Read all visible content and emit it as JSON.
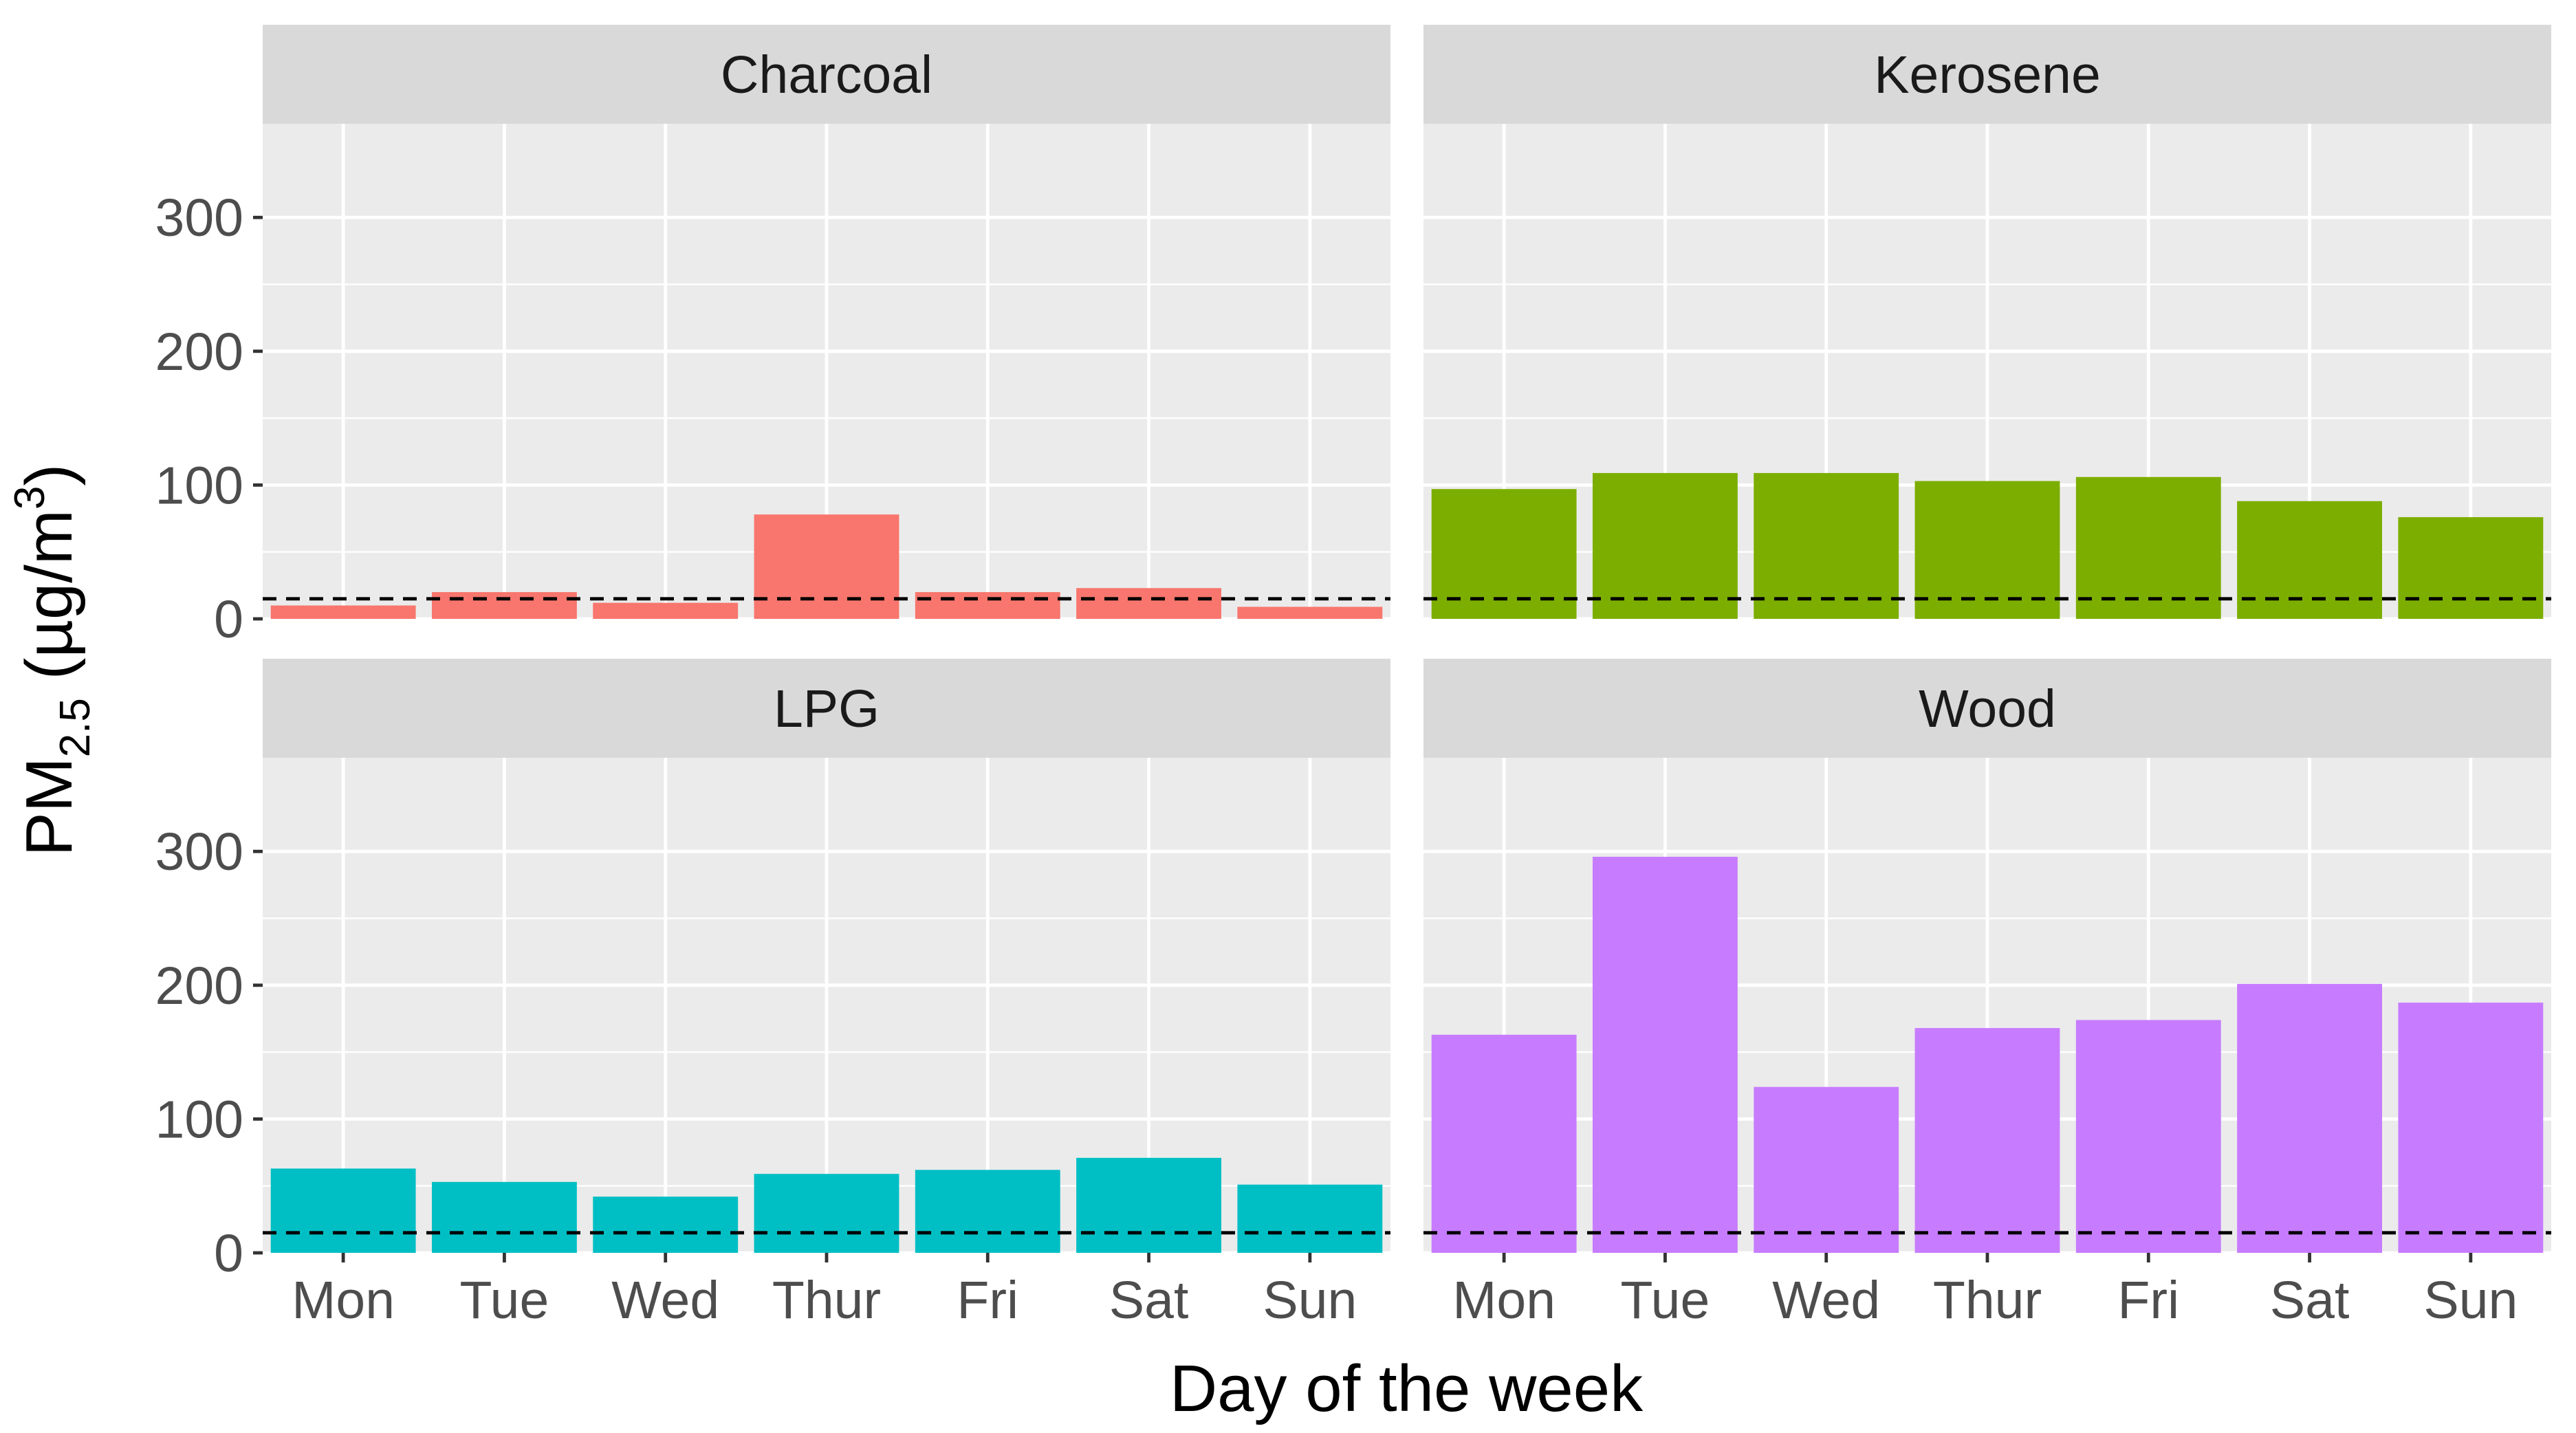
{
  "chart_data": {
    "type": "bar",
    "layout": "facet-2x2",
    "xlabel": "Day of the week",
    "ylabel": "PM2.5 (µg/m3)",
    "ylabel_parts": {
      "base": "PM",
      "sub": "2.5",
      "unit_open": " (µg/m",
      "sup": "3",
      "unit_close": ")"
    },
    "categories": [
      "Mon",
      "Tue",
      "Wed",
      "Thur",
      "Fri",
      "Sat",
      "Sun"
    ],
    "ylim": [
      0,
      370
    ],
    "yticks": [
      0,
      100,
      200,
      300
    ],
    "ytick_labels": [
      "0",
      "100",
      "200",
      "300"
    ],
    "reference_line": {
      "value": 15,
      "style": "dashed",
      "color": "#000000"
    },
    "panels": [
      {
        "name": "Charcoal",
        "color": "#F8766D",
        "values": [
          10,
          20,
          12,
          78,
          20,
          23,
          9
        ]
      },
      {
        "name": "Kerosene",
        "color": "#7CAE00",
        "values": [
          97,
          109,
          109,
          103,
          106,
          88,
          76
        ]
      },
      {
        "name": "LPG",
        "color": "#00BFC4",
        "values": [
          63,
          53,
          42,
          59,
          62,
          71,
          51
        ]
      },
      {
        "name": "Wood",
        "color": "#C77CFF",
        "values": [
          163,
          296,
          124,
          168,
          174,
          201,
          187
        ]
      }
    ]
  }
}
